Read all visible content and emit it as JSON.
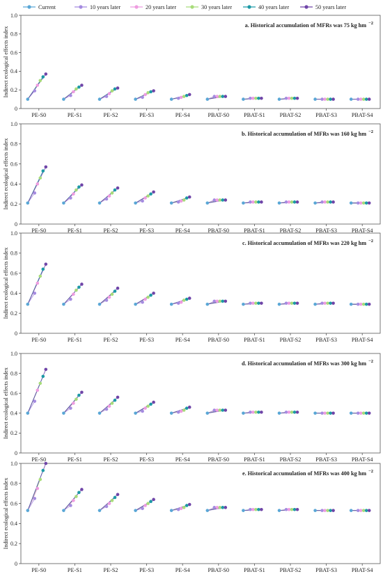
{
  "figure": {
    "legend": [
      {
        "label": "Current",
        "color": "#5aa7d6"
      },
      {
        "label": "10 years later",
        "color": "#a58be0"
      },
      {
        "label": "20 years later",
        "color": "#ee9ce0"
      },
      {
        "label": "30 years later",
        "color": "#a8dc7a"
      },
      {
        "label": "40 years later",
        "color": "#1d9aa6"
      },
      {
        "label": "50 years later",
        "color": "#6f45a8"
      }
    ]
  },
  "chart_data": [
    {
      "type": "line",
      "panel_title": "a. Historical accumulation of MFRs was 75 kg hm",
      "panel_title_sup": "−2",
      "ylabel": "Indirect ecological effects index",
      "ylim": [
        0,
        1.0
      ],
      "yticks": [
        "0",
        "0.2",
        "0.4",
        "0.6",
        "0.8",
        "1.0"
      ],
      "categories": [
        "PE-S0",
        "PE-S1",
        "PE-S2",
        "PE-S3",
        "PE-S4",
        "PBAT-S0",
        "PBAT-S1",
        "PBAT-S2",
        "PBAT-S3",
        "PBAT-S4"
      ],
      "series": [
        {
          "name": "Current",
          "values": [
            0.1,
            0.1,
            0.1,
            0.1,
            0.1,
            0.1,
            0.1,
            0.1,
            0.1,
            0.1
          ]
        },
        {
          "name": "10 years later",
          "values": [
            0.19,
            0.14,
            0.13,
            0.12,
            0.11,
            0.13,
            0.11,
            0.11,
            0.1,
            0.1
          ]
        },
        {
          "name": "20 years later",
          "values": [
            0.25,
            0.18,
            0.16,
            0.15,
            0.12,
            0.13,
            0.11,
            0.11,
            0.1,
            0.1
          ]
        },
        {
          "name": "30 years later",
          "values": [
            0.3,
            0.21,
            0.19,
            0.17,
            0.13,
            0.13,
            0.11,
            0.11,
            0.1,
            0.1
          ]
        },
        {
          "name": "40 years later",
          "values": [
            0.34,
            0.23,
            0.21,
            0.18,
            0.14,
            0.13,
            0.11,
            0.11,
            0.1,
            0.1
          ]
        },
        {
          "name": "50 years later",
          "values": [
            0.37,
            0.25,
            0.22,
            0.19,
            0.15,
            0.13,
            0.11,
            0.11,
            0.1,
            0.1
          ]
        }
      ]
    },
    {
      "type": "line",
      "panel_title": "b. Historical accumulation of MFRs was 160 kg hm",
      "panel_title_sup": "−2",
      "ylabel": "Indirect ecological effects index",
      "ylim": [
        0,
        1.0
      ],
      "yticks": [
        "0",
        "0.2",
        "0.4",
        "0.6",
        "0.8",
        "1.0"
      ],
      "categories": [
        "PE-S0",
        "PE-S1",
        "PE-S2",
        "PE-S3",
        "PE-S4",
        "PBAT-S0",
        "PBAT-S1",
        "PBAT-S2",
        "PBAT-S3",
        "PBAT-S4"
      ],
      "series": [
        {
          "name": "Current",
          "values": [
            0.21,
            0.21,
            0.21,
            0.21,
            0.21,
            0.21,
            0.21,
            0.21,
            0.21,
            0.21
          ]
        },
        {
          "name": "10 years later",
          "values": [
            0.31,
            0.26,
            0.25,
            0.23,
            0.22,
            0.24,
            0.22,
            0.22,
            0.22,
            0.21
          ]
        },
        {
          "name": "20 years later",
          "values": [
            0.4,
            0.3,
            0.28,
            0.26,
            0.23,
            0.24,
            0.22,
            0.22,
            0.22,
            0.21
          ]
        },
        {
          "name": "30 years later",
          "values": [
            0.46,
            0.34,
            0.31,
            0.28,
            0.24,
            0.24,
            0.22,
            0.22,
            0.22,
            0.21
          ]
        },
        {
          "name": "40 years later",
          "values": [
            0.53,
            0.37,
            0.34,
            0.3,
            0.26,
            0.24,
            0.22,
            0.22,
            0.22,
            0.21
          ]
        },
        {
          "name": "50 years later",
          "values": [
            0.57,
            0.39,
            0.36,
            0.32,
            0.27,
            0.24,
            0.22,
            0.22,
            0.22,
            0.21
          ]
        }
      ]
    },
    {
      "type": "line",
      "panel_title": "c. Historical accumulation of MFRs was 220 kg hm",
      "panel_title_sup": "−2",
      "ylabel": "Indirect ecological effects index",
      "ylim": [
        0,
        1.0
      ],
      "yticks": [
        "0",
        "0.2",
        "0.4",
        "0.6",
        "0.8",
        "1.0"
      ],
      "categories": [
        "PE-S0",
        "PE-S1",
        "PE-S2",
        "PE-S3",
        "PE-S4",
        "PBAT-S0",
        "PBAT-S1",
        "PBAT-S2",
        "PBAT-S3",
        "PBAT-S4"
      ],
      "series": [
        {
          "name": "Current",
          "values": [
            0.29,
            0.29,
            0.29,
            0.29,
            0.29,
            0.29,
            0.29,
            0.29,
            0.29,
            0.29
          ]
        },
        {
          "name": "10 years later",
          "values": [
            0.4,
            0.34,
            0.33,
            0.31,
            0.3,
            0.32,
            0.3,
            0.3,
            0.3,
            0.29
          ]
        },
        {
          "name": "20 years later",
          "values": [
            0.5,
            0.39,
            0.36,
            0.34,
            0.31,
            0.32,
            0.3,
            0.3,
            0.3,
            0.29
          ]
        },
        {
          "name": "30 years later",
          "values": [
            0.57,
            0.43,
            0.39,
            0.36,
            0.33,
            0.32,
            0.3,
            0.3,
            0.3,
            0.29
          ]
        },
        {
          "name": "40 years later",
          "values": [
            0.64,
            0.46,
            0.42,
            0.38,
            0.34,
            0.32,
            0.3,
            0.3,
            0.3,
            0.29
          ]
        },
        {
          "name": "50 years later",
          "values": [
            0.69,
            0.49,
            0.45,
            0.4,
            0.35,
            0.32,
            0.3,
            0.3,
            0.3,
            0.29
          ]
        }
      ]
    },
    {
      "type": "line",
      "panel_title": "d. Historical accumulation of MFRs was 300 kg hm",
      "panel_title_sup": "−2",
      "ylabel": "Indirect ecological effects index",
      "ylim": [
        0,
        1.0
      ],
      "yticks": [
        "0",
        "0.2",
        "0.4",
        "0.6",
        "0.8",
        "1.0"
      ],
      "categories": [
        "PE-S0",
        "PE-S1",
        "PE-S2",
        "PE-S3",
        "PE-S4",
        "PBAT-S0",
        "PBAT-S1",
        "PBAT-S2",
        "PBAT-S3",
        "PBAT-S4"
      ],
      "series": [
        {
          "name": "Current",
          "values": [
            0.4,
            0.4,
            0.4,
            0.4,
            0.4,
            0.4,
            0.4,
            0.4,
            0.4,
            0.4
          ]
        },
        {
          "name": "10 years later",
          "values": [
            0.52,
            0.45,
            0.44,
            0.42,
            0.41,
            0.43,
            0.41,
            0.41,
            0.4,
            0.4
          ]
        },
        {
          "name": "20 years later",
          "values": [
            0.63,
            0.5,
            0.47,
            0.45,
            0.42,
            0.43,
            0.41,
            0.41,
            0.4,
            0.4
          ]
        },
        {
          "name": "30 years later",
          "values": [
            0.7,
            0.54,
            0.5,
            0.47,
            0.43,
            0.43,
            0.41,
            0.41,
            0.4,
            0.4
          ]
        },
        {
          "name": "40 years later",
          "values": [
            0.77,
            0.58,
            0.53,
            0.49,
            0.45,
            0.43,
            0.41,
            0.41,
            0.4,
            0.4
          ]
        },
        {
          "name": "50 years later",
          "values": [
            0.84,
            0.61,
            0.56,
            0.51,
            0.46,
            0.43,
            0.41,
            0.41,
            0.4,
            0.4
          ]
        }
      ]
    },
    {
      "type": "line",
      "panel_title": "e. Historical accumulation of MFRs was 400 kg hm",
      "panel_title_sup": "−2",
      "ylabel": "Indirect ecological effects index",
      "ylim": [
        0,
        1.0
      ],
      "yticks": [
        "0",
        "0.2",
        "0.4",
        "0.6",
        "0.8",
        "1.0"
      ],
      "categories": [
        "PE-S0",
        "PE-S1",
        "PE-S2",
        "PE-S3",
        "PE-S4",
        "PBAT-S0",
        "PBAT-S1",
        "PBAT-S2",
        "PBAT-S3",
        "PBAT-S4"
      ],
      "series": [
        {
          "name": "Current",
          "values": [
            0.53,
            0.53,
            0.53,
            0.53,
            0.53,
            0.53,
            0.53,
            0.53,
            0.53,
            0.53
          ]
        },
        {
          "name": "10 years later",
          "values": [
            0.65,
            0.58,
            0.57,
            0.55,
            0.54,
            0.56,
            0.54,
            0.54,
            0.53,
            0.53
          ]
        },
        {
          "name": "20 years later",
          "values": [
            0.75,
            0.63,
            0.6,
            0.58,
            0.55,
            0.56,
            0.54,
            0.54,
            0.53,
            0.53
          ]
        },
        {
          "name": "30 years later",
          "values": [
            0.84,
            0.67,
            0.63,
            0.6,
            0.56,
            0.56,
            0.54,
            0.54,
            0.53,
            0.53
          ]
        },
        {
          "name": "40 years later",
          "values": [
            0.93,
            0.71,
            0.66,
            0.62,
            0.58,
            0.56,
            0.54,
            0.54,
            0.53,
            0.53
          ]
        },
        {
          "name": "50 years later",
          "values": [
            1.0,
            0.74,
            0.69,
            0.64,
            0.59,
            0.56,
            0.54,
            0.54,
            0.53,
            0.53
          ]
        }
      ]
    }
  ]
}
